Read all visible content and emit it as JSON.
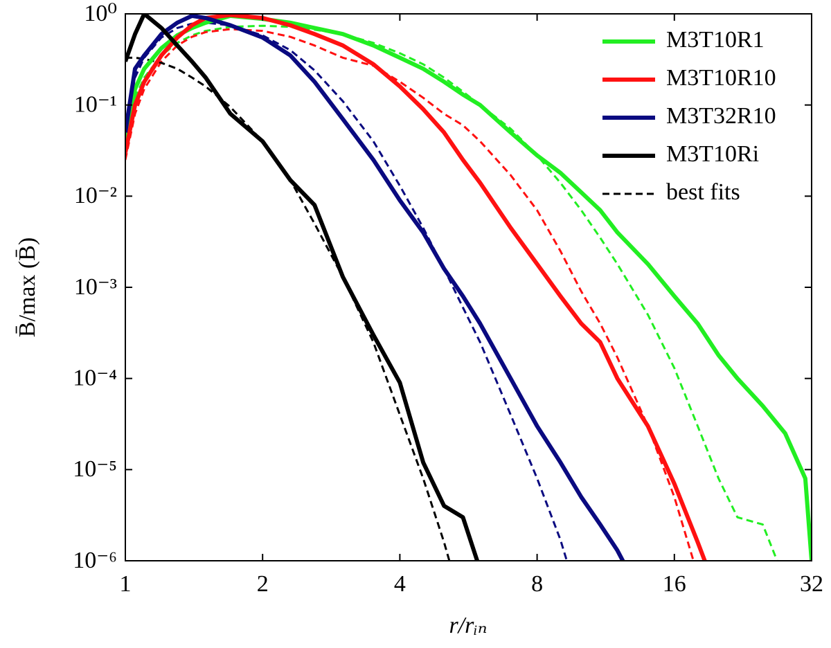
{
  "chart_data": {
    "type": "line",
    "xlabel": "r/rᵢₙ",
    "ylabel": "B̄/max (B̄)",
    "xscale": "log",
    "yscale": "log",
    "xlim": [
      1,
      32
    ],
    "ylim": [
      1e-06,
      1
    ],
    "xticks": [
      1,
      2,
      4,
      8,
      16,
      32
    ],
    "yticks": [
      {
        "value": 1,
        "label": "10⁰"
      },
      {
        "value": 0.1,
        "label": "10⁻¹"
      },
      {
        "value": 0.01,
        "label": "10⁻²"
      },
      {
        "value": 0.001,
        "label": "10⁻³"
      },
      {
        "value": 0.0001,
        "label": "10⁻⁴"
      },
      {
        "value": 1e-05,
        "label": "10⁻⁵"
      },
      {
        "value": 1e-06,
        "label": "10⁻⁶"
      }
    ],
    "legend": "upper right",
    "x": [
      1,
      1.05,
      1.1,
      1.2,
      1.3,
      1.4,
      1.5,
      1.7,
      2,
      2.3,
      2.6,
      3,
      3.5,
      4,
      4.5,
      5,
      5.5,
      6,
      7,
      8,
      9,
      10,
      11,
      12,
      14,
      16,
      18,
      20,
      22,
      25,
      28,
      31,
      32
    ],
    "series": [
      {
        "name": "M3T10R1",
        "color": "#22ee22",
        "values": [
          0.04,
          0.15,
          0.25,
          0.42,
          0.58,
          0.7,
          0.8,
          0.95,
          0.88,
          0.8,
          0.7,
          0.6,
          0.45,
          0.33,
          0.25,
          0.18,
          0.13,
          0.1,
          0.05,
          0.028,
          0.018,
          0.011,
          0.007,
          0.004,
          0.0018,
          0.0008,
          0.0004,
          0.00018,
          0.0001,
          5e-05,
          2.5e-05,
          8e-06,
          1e-06
        ]
      },
      {
        "name": "M3T10R10",
        "color": "#ff1111",
        "values": [
          0.03,
          0.1,
          0.18,
          0.35,
          0.55,
          0.75,
          0.9,
          0.97,
          0.9,
          0.75,
          0.6,
          0.45,
          0.28,
          0.16,
          0.09,
          0.05,
          0.025,
          0.014,
          0.0045,
          0.0018,
          0.0008,
          0.0004,
          0.00025,
          0.0001,
          3e-05,
          7e-06,
          1.6e-06,
          4e-07,
          null,
          null,
          null,
          null,
          null
        ]
      },
      {
        "name": "M3T32R10",
        "color": "#0a0a80",
        "values": [
          0.05,
          0.25,
          0.35,
          0.6,
          0.8,
          0.95,
          0.9,
          0.75,
          0.55,
          0.35,
          0.18,
          0.07,
          0.025,
          0.009,
          0.004,
          0.0016,
          0.0008,
          0.0004,
          0.0001,
          3e-05,
          1.2e-05,
          5e-06,
          2.5e-06,
          1.3e-06,
          3e-07,
          null,
          null,
          null,
          null,
          null,
          null,
          null,
          null
        ]
      },
      {
        "name": "M3T10Ri",
        "color": "#000000",
        "values": [
          0.3,
          0.6,
          1,
          0.7,
          0.45,
          0.3,
          0.2,
          0.08,
          0.04,
          0.015,
          0.008,
          0.0013,
          0.0003,
          9e-05,
          1.2e-05,
          4e-06,
          3e-06,
          8e-07,
          null,
          null,
          null,
          null,
          null,
          null,
          null,
          null,
          null,
          null,
          null,
          null,
          null,
          null,
          null
        ]
      }
    ],
    "fits": {
      "name": "best fits",
      "color": "#000000",
      "series": [
        {
          "color": "#22ee22",
          "values": [
            0.04,
            0.12,
            0.2,
            0.35,
            0.48,
            0.58,
            0.65,
            0.72,
            0.74,
            0.72,
            0.67,
            0.6,
            0.48,
            0.37,
            0.28,
            0.2,
            0.14,
            0.1,
            0.055,
            0.028,
            0.014,
            0.007,
            0.0035,
            0.0018,
            0.0005,
            0.00013,
            3e-05,
            8e-06,
            3e-06,
            2.5e-06,
            6e-07,
            null,
            null
          ]
        },
        {
          "color": "#ff1111",
          "values": [
            0.025,
            0.08,
            0.15,
            0.3,
            0.45,
            0.56,
            0.63,
            0.68,
            0.65,
            0.56,
            0.45,
            0.33,
            0.27,
            0.18,
            0.12,
            0.08,
            0.06,
            0.04,
            0.017,
            0.007,
            0.0025,
            0.0009,
            0.0004,
            0.00017,
            3e-05,
            5e-06,
            7e-07,
            null,
            null,
            null,
            null,
            null,
            null
          ]
        },
        {
          "color": "#0a0a80",
          "values": [
            0.05,
            0.2,
            0.33,
            0.55,
            0.7,
            0.78,
            0.8,
            0.75,
            0.58,
            0.4,
            0.24,
            0.11,
            0.04,
            0.013,
            0.0045,
            0.0016,
            0.0006,
            0.00025,
            4e-05,
            8e-06,
            1.7e-06,
            3e-07,
            null,
            null,
            null,
            null,
            null,
            null,
            null,
            null,
            null,
            null,
            null
          ]
        },
        {
          "color": "#000000",
          "values": [
            0.33,
            0.33,
            0.32,
            0.29,
            0.25,
            0.2,
            0.16,
            0.095,
            0.04,
            0.015,
            0.005,
            0.0013,
            0.00025,
            4e-05,
            8e-06,
            1.6e-06,
            3e-07,
            null,
            null,
            null,
            null,
            null,
            null,
            null,
            null,
            null,
            null,
            null,
            null,
            null,
            null,
            null,
            null
          ]
        }
      ]
    }
  }
}
